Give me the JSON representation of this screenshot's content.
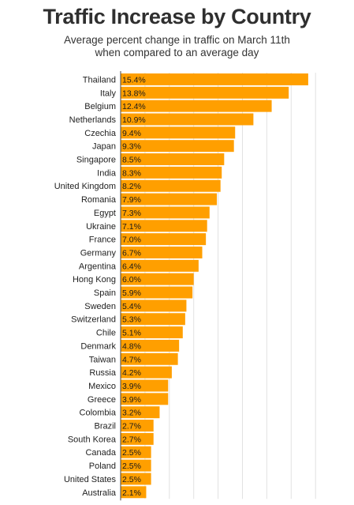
{
  "chart_data": {
    "type": "bar",
    "orientation": "horizontal",
    "title": "Traffic Increase by Country",
    "subtitle_lines": [
      "Average percent change in traffic on March 11th",
      "when compared to an average day"
    ],
    "categories": [
      "Thailand",
      "Italy",
      "Belgium",
      "Netherlands",
      "Czechia",
      "Japan",
      "Singapore",
      "India",
      "United Kingdom",
      "Romania",
      "Egypt",
      "Ukraine",
      "France",
      "Germany",
      "Argentina",
      "Hong Kong",
      "Spain",
      "Sweden",
      "Switzerland",
      "Chile",
      "Denmark",
      "Taiwan",
      "Russia",
      "Mexico",
      "Greece",
      "Colombia",
      "Brazil",
      "South Korea",
      "Canada",
      "Poland",
      "United States",
      "Australia"
    ],
    "values": [
      15.4,
      13.8,
      12.4,
      10.9,
      9.4,
      9.3,
      8.5,
      8.3,
      8.2,
      7.9,
      7.3,
      7.1,
      7.0,
      6.7,
      6.4,
      6.0,
      5.9,
      5.4,
      5.3,
      5.1,
      4.8,
      4.7,
      4.2,
      3.9,
      3.9,
      3.2,
      2.7,
      2.7,
      2.5,
      2.5,
      2.5,
      2.1
    ],
    "value_labels": [
      "15.4%",
      "13.8%",
      "12.4%",
      "10.9%",
      "9.4%",
      "9.3%",
      "8.5%",
      "8.3%",
      "8.2%",
      "7.9%",
      "7.3%",
      "7.1%",
      "7.0%",
      "6.7%",
      "6.4%",
      "6.0%",
      "5.9%",
      "5.4%",
      "5.3%",
      "5.1%",
      "4.8%",
      "4.7%",
      "4.2%",
      "3.9%",
      "3.9%",
      "3.2%",
      "2.7%",
      "2.7%",
      "2.5%",
      "2.5%",
      "2.5%",
      "2.1%"
    ],
    "xlim": [
      0,
      16
    ],
    "grid": true,
    "bar_color": "#ff9f00"
  }
}
